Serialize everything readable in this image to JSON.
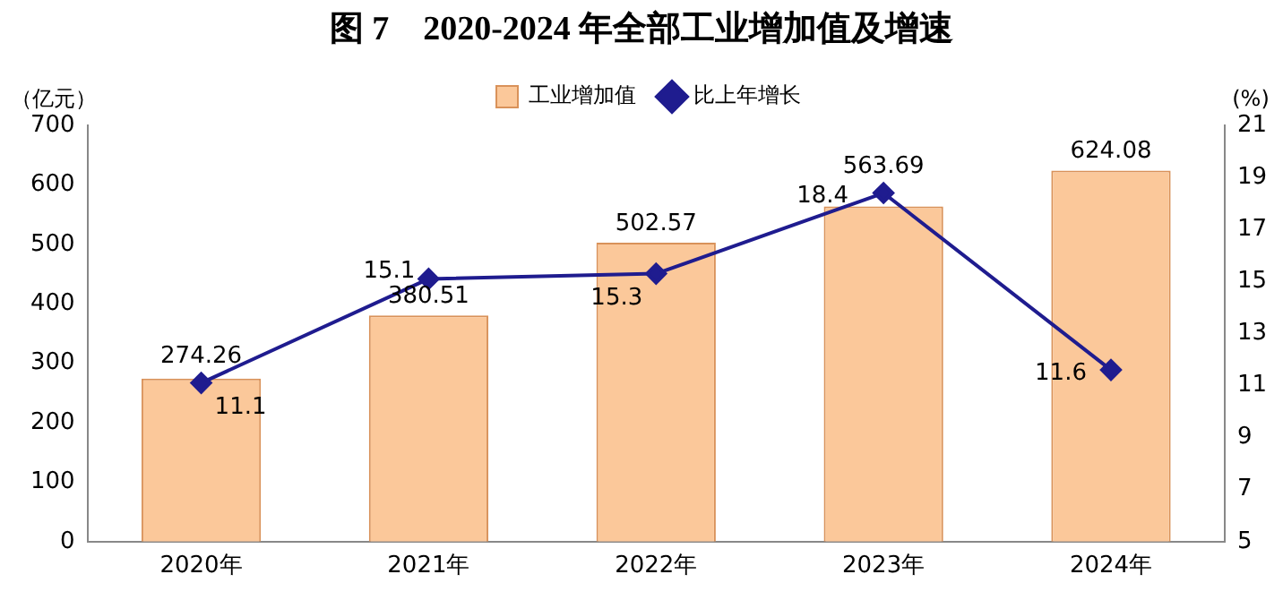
{
  "chart_data": {
    "type": "bar",
    "title": "图 7　2020-2024 年全部工业增加值及增速",
    "ylabel": "（亿元）",
    "y2label": "(%)",
    "categories": [
      "2020年",
      "2021年",
      "2022年",
      "2023年",
      "2024年"
    ],
    "series": [
      {
        "name": "工业增加值",
        "color": "#fbc89a",
        "values": [
          274.26,
          380.51,
          502.57,
          563.69,
          624.08
        ]
      },
      {
        "name": "比上年增长",
        "type": "line",
        "axis": "y2",
        "color": "#1f1c8f",
        "values": [
          11.1,
          15.1,
          15.3,
          18.4,
          11.6
        ]
      }
    ],
    "ylim": [
      0,
      700
    ],
    "yticks": [
      0,
      100,
      200,
      300,
      400,
      500,
      600,
      700
    ],
    "y2lim": [
      5,
      21
    ],
    "y2ticks": [
      5,
      7,
      9,
      11,
      13,
      15,
      17,
      19,
      21
    ],
    "grid": false,
    "legend": "top",
    "marker": "diamond",
    "line_style": "solid",
    "data_labels": true
  }
}
